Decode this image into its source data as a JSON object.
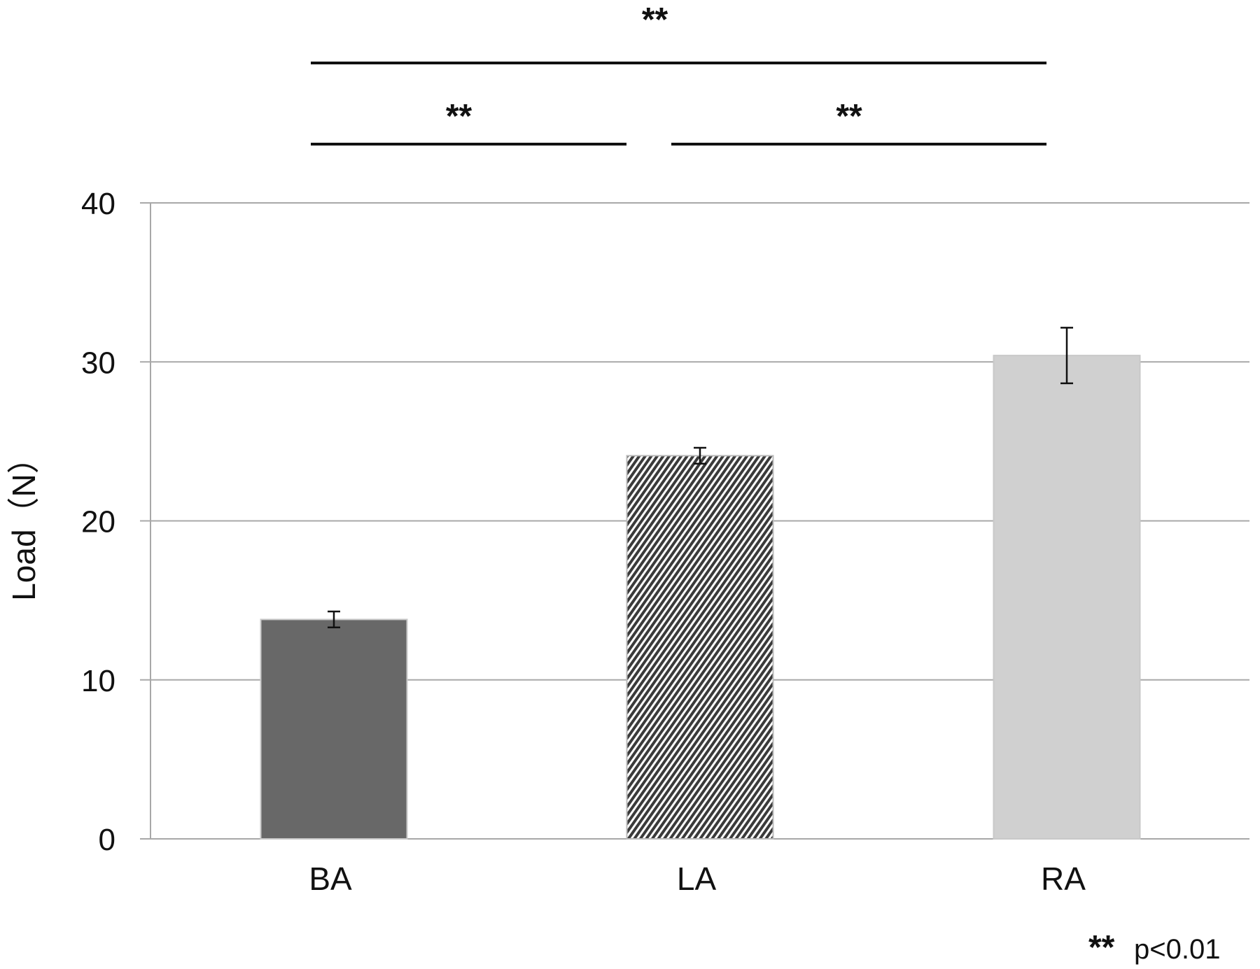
{
  "chart_data": {
    "type": "bar",
    "title": "",
    "xlabel": "",
    "ylabel": "Load（N）",
    "ylim": [
      0,
      40
    ],
    "yticks": [
      "0",
      "10",
      "20",
      "30",
      "40"
    ],
    "grid": true,
    "categories": [
      "BA",
      "LA",
      "RA"
    ],
    "values": [
      13.8,
      24.1,
      30.4
    ],
    "errors": [
      0.5,
      0.5,
      1.75
    ],
    "bar_styles": [
      {
        "fill": "#686868",
        "pattern": "solid"
      },
      {
        "fill": "#4a4a4a",
        "pattern": "diagonal-hatch"
      },
      {
        "fill": "#d0d0d0",
        "pattern": "solid"
      }
    ],
    "significance": [
      {
        "from": "BA",
        "to": "RA",
        "label": "**",
        "level": 2
      },
      {
        "from": "BA",
        "to": "LA",
        "label": "**",
        "level": 1
      },
      {
        "from": "LA",
        "to": "RA",
        "label": "**",
        "level": 1
      }
    ],
    "footnote": {
      "marker": "**",
      "text": "p<0.01"
    }
  }
}
